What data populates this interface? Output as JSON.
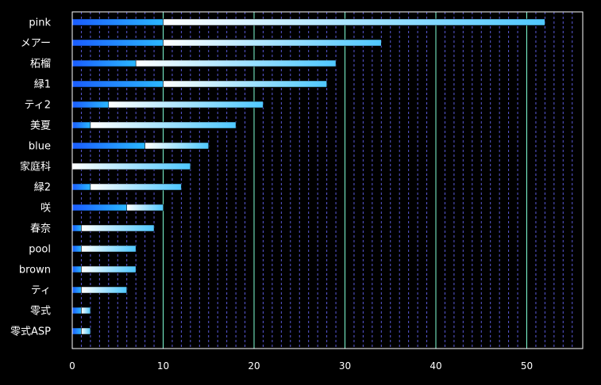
{
  "chart_data": {
    "type": "bar",
    "orientation": "horizontal",
    "stacked": true,
    "title": "",
    "xlabel": "",
    "ylabel": "",
    "categories": [
      "pink",
      "メアー",
      "柘榴",
      "緑1",
      "ティ2",
      "美夏",
      "blue",
      "家庭科",
      "緑2",
      "咲",
      "春奈",
      "pool",
      "brown",
      "ティ",
      "零式",
      "零式ASP"
    ],
    "series": [
      {
        "values": [
          10,
          10,
          7,
          10,
          4,
          2,
          8,
          0,
          2,
          6,
          1,
          1,
          1,
          1,
          1,
          1
        ]
      },
      {
        "values": [
          42,
          24,
          22,
          18,
          17,
          16,
          7,
          13,
          10,
          4,
          8,
          6,
          6,
          5,
          1,
          1
        ]
      }
    ],
    "totals": [
      52,
      34,
      29,
      28,
      21,
      18,
      15,
      13,
      12,
      10,
      9,
      7,
      7,
      6,
      2,
      2
    ],
    "xlim": [
      0,
      55
    ],
    "xticks": [
      0,
      10,
      20,
      30,
      40,
      50
    ],
    "grid": {
      "major_every": 10,
      "minor_every": 1,
      "on": true
    },
    "colors": {
      "background": "#000000",
      "series1": "#1a6cff",
      "series2": "#cdeeff",
      "major_grid": "#7fffd4",
      "minor_grid": "#6a6aff",
      "axis": "#ffffff"
    }
  }
}
